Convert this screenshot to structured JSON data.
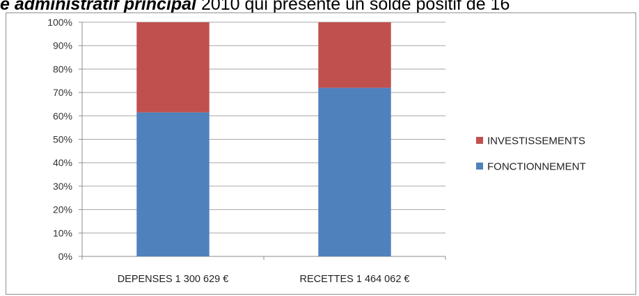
{
  "document": {
    "text_emphasis": "e administratif principal",
    "text_rest": " 2010 qui présente un solde positif de 16"
  },
  "chart_data": {
    "type": "bar",
    "stacked": true,
    "percent": true,
    "categories": [
      "DEPENSES 1 300 629 €",
      "RECETTES 1 464 062 €"
    ],
    "series": [
      {
        "name": "FONCTIONNEMENT",
        "values": [
          61.5,
          72
        ],
        "color": "#4f81bd"
      },
      {
        "name": "INVESTISSEMENTS",
        "values": [
          38.5,
          28
        ],
        "color": "#c0504d"
      }
    ],
    "y_ticks": [
      "0%",
      "10%",
      "20%",
      "30%",
      "40%",
      "50%",
      "60%",
      "70%",
      "80%",
      "90%",
      "100%"
    ],
    "ylim": [
      0,
      100
    ],
    "grid": true,
    "legend": {
      "position": "right",
      "order": [
        "INVESTISSEMENTS",
        "FONCTIONNEMENT"
      ]
    }
  }
}
